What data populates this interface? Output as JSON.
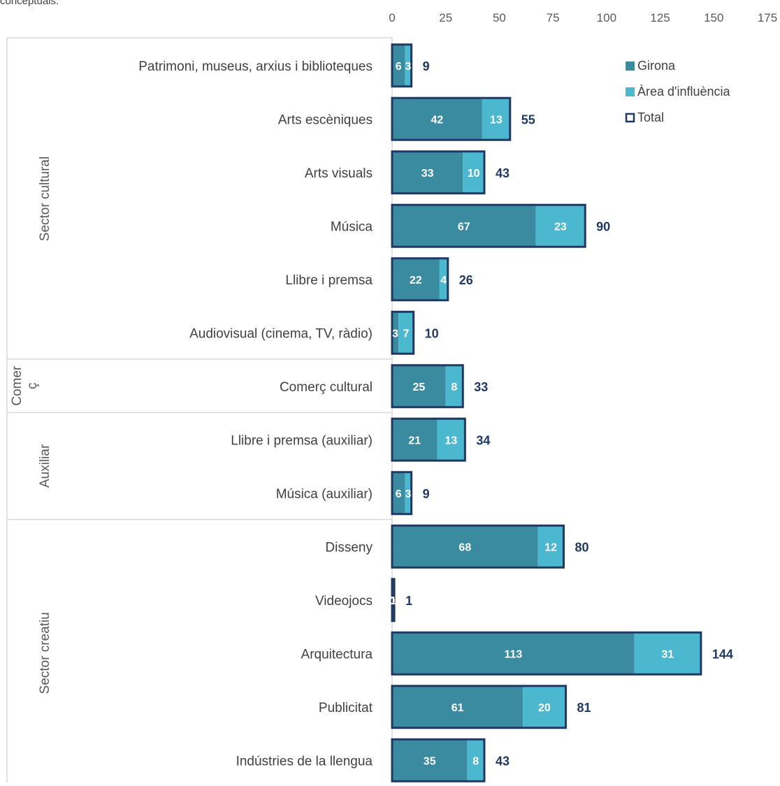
{
  "header_fragment": "conceptuals.",
  "chart_data": {
    "type": "bar",
    "orientation": "horizontal",
    "stacked": true,
    "xlim": [
      0,
      175
    ],
    "xticks": [
      "0",
      "25",
      "50",
      "75",
      "100",
      "125",
      "150",
      "175"
    ],
    "axis_position": "top",
    "grid": false,
    "legend_position": "top-right",
    "colors": {
      "girona": "#3a8aa0",
      "area": "#4bb8cf",
      "total_outline": "#1f3864"
    },
    "series": [
      {
        "name": "Girona",
        "values": [
          6,
          42,
          33,
          67,
          22,
          3,
          25,
          21,
          6,
          68,
          0,
          113,
          61,
          35
        ]
      },
      {
        "name": "Àrea d'influència",
        "values": [
          3,
          13,
          10,
          23,
          4,
          7,
          8,
          13,
          3,
          12,
          1,
          31,
          20,
          8
        ]
      },
      {
        "name": "Total",
        "values": [
          9,
          55,
          43,
          90,
          26,
          10,
          33,
          34,
          9,
          80,
          1,
          144,
          81,
          43
        ]
      }
    ],
    "categories": [
      "Patrimoni, museus, arxius i biblioteques",
      "Arts escèniques",
      "Arts visuals",
      "Música",
      "Llibre i premsa",
      "Audiovisual (cinema, TV, ràdio)",
      "Comerç cultural",
      "Llibre i premsa (auxiliar)",
      "Música (auxiliar)",
      "Disseny",
      "Videojocs",
      "Arquitectura",
      "Publicitat",
      "Indústries de la llengua"
    ],
    "groups": [
      {
        "label": "Sector cultural",
        "start": 0,
        "end": 5
      },
      {
        "label": "Comer ç",
        "lines": [
          "Comer",
          "ç"
        ],
        "start": 6,
        "end": 6
      },
      {
        "label": "Auxiliar",
        "start": 7,
        "end": 8
      },
      {
        "label": "Sector creatiu",
        "start": 9,
        "end": 13
      }
    ]
  }
}
